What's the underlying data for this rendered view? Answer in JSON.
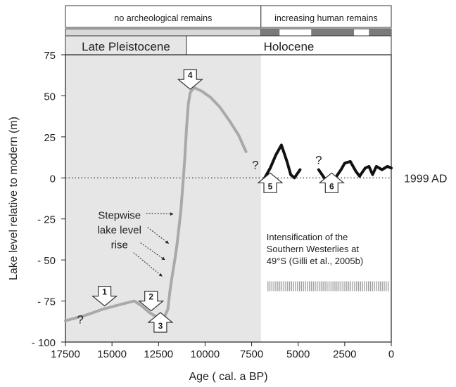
{
  "chart_data": {
    "type": "line",
    "xlabel": "Age ( cal. a BP)",
    "ylabel": "Lake level relative to modern (m)",
    "xlim": [
      17500,
      0
    ],
    "ylim": [
      -100,
      75
    ],
    "x_reversed": true,
    "x_ticks": [
      17500,
      15000,
      12500,
      10000,
      7500,
      5000,
      2500,
      0
    ],
    "x_tick_labels": [
      "17500",
      "15000",
      "12500",
      "10000",
      "7500",
      "5000",
      "2500",
      "0"
    ],
    "y_ticks": [
      75,
      50,
      25,
      0,
      -25,
      -50,
      -75,
      -100
    ],
    "y_tick_labels": [
      "75",
      "50",
      "25",
      "0",
      "- 25",
      "- 50",
      "- 75",
      "- 100"
    ],
    "grid": false,
    "shaded_region": {
      "from": 17500,
      "to": 7000,
      "color": "#e6e6e6"
    },
    "reference_line": {
      "y": 0,
      "style": "dotted",
      "label": "1999 AD"
    },
    "header": {
      "archaeology": [
        {
          "label": "no archeological remains",
          "from": 17500,
          "to": 7000
        },
        {
          "label": "increasing human remains",
          "from": 7000,
          "to": 0
        }
      ],
      "occupation_bar": {
        "dark_segments": [
          [
            7000,
            6000
          ],
          [
            4300,
            2000
          ],
          [
            1200,
            0
          ]
        ]
      },
      "periods": [
        {
          "label": "Late Pleistocene",
          "from": 17500,
          "to": 11000
        },
        {
          "label": "Holocene",
          "from": 11000,
          "to": 0
        }
      ]
    },
    "series": [
      {
        "style": "gray",
        "color": "#a9a9a9",
        "points": [
          [
            17500,
            -87
          ],
          [
            16500,
            -84
          ],
          [
            15500,
            -80
          ],
          [
            14500,
            -77
          ],
          [
            13800,
            -75
          ],
          [
            13400,
            -78
          ],
          [
            13000,
            -82
          ],
          [
            12700,
            -84
          ],
          [
            12400,
            -85
          ],
          [
            12150,
            -84
          ],
          [
            12000,
            -80
          ],
          [
            11900,
            -70
          ],
          [
            11800,
            -62
          ],
          [
            11700,
            -55
          ],
          [
            11600,
            -48
          ],
          [
            11500,
            -40
          ],
          [
            11400,
            -30
          ],
          [
            11300,
            -20
          ],
          [
            11200,
            -5
          ],
          [
            11100,
            10
          ],
          [
            11000,
            30
          ],
          [
            10900,
            45
          ],
          [
            10800,
            52
          ],
          [
            10600,
            55
          ],
          [
            10200,
            53
          ],
          [
            9700,
            49
          ],
          [
            9200,
            43
          ],
          [
            8700,
            35
          ],
          [
            8200,
            26
          ],
          [
            7800,
            16
          ]
        ]
      },
      {
        "style": "black",
        "color": "#111111",
        "points": [
          [
            6800,
            0
          ],
          [
            6500,
            6
          ],
          [
            6200,
            14
          ],
          [
            5900,
            20
          ],
          [
            5600,
            10
          ],
          [
            5400,
            2
          ],
          [
            5200,
            0
          ],
          [
            4900,
            5
          ]
        ]
      },
      {
        "style": "black",
        "color": "#111111",
        "points": [
          [
            3900,
            5
          ],
          [
            3600,
            0
          ],
          [
            3300,
            -2
          ],
          [
            3000,
            0
          ],
          [
            2700,
            5
          ],
          [
            2500,
            9
          ],
          [
            2200,
            10
          ],
          [
            1900,
            4
          ],
          [
            1700,
            1
          ],
          [
            1400,
            6
          ],
          [
            1200,
            7
          ],
          [
            1000,
            2
          ],
          [
            800,
            7
          ],
          [
            500,
            5
          ],
          [
            200,
            7
          ],
          [
            0,
            6
          ]
        ]
      }
    ],
    "events": [
      {
        "label": "1",
        "x": 15400,
        "y": -72,
        "direction": "down"
      },
      {
        "label": "2",
        "x": 12900,
        "y": -75,
        "direction": "down"
      },
      {
        "label": "3",
        "x": 12400,
        "y": -88,
        "direction": "up"
      },
      {
        "label": "4",
        "x": 10800,
        "y": 60,
        "direction": "down"
      },
      {
        "label": "5",
        "x": 6500,
        "y": -3,
        "direction": "up"
      },
      {
        "label": "6",
        "x": 3200,
        "y": -3,
        "direction": "up"
      }
    ],
    "question_marks": [
      {
        "label": "?",
        "x": 16700,
        "y": -86
      },
      {
        "label": "?",
        "x": 7300,
        "y": 8
      },
      {
        "label": "?",
        "x": 3900,
        "y": 11
      }
    ],
    "annotations": {
      "stepwise": {
        "text_lines": [
          "Stepwise",
          "lake level",
          "rise"
        ],
        "anchor_x": 14600,
        "anchor_y": -25,
        "targets": [
          [
            11550,
            -22
          ],
          [
            11800,
            -40
          ],
          [
            12000,
            -50
          ],
          [
            12150,
            -60
          ]
        ]
      },
      "westerlies": {
        "text_lines": [
          "Intensification of the",
          "Southern Westerlies at",
          "49°S (Gilli et al., 2005b)"
        ],
        "anchor_x": 6700,
        "anchor_y": -38,
        "bar_from": 7000,
        "bar_to": 100,
        "bar_y": -66
      }
    }
  }
}
